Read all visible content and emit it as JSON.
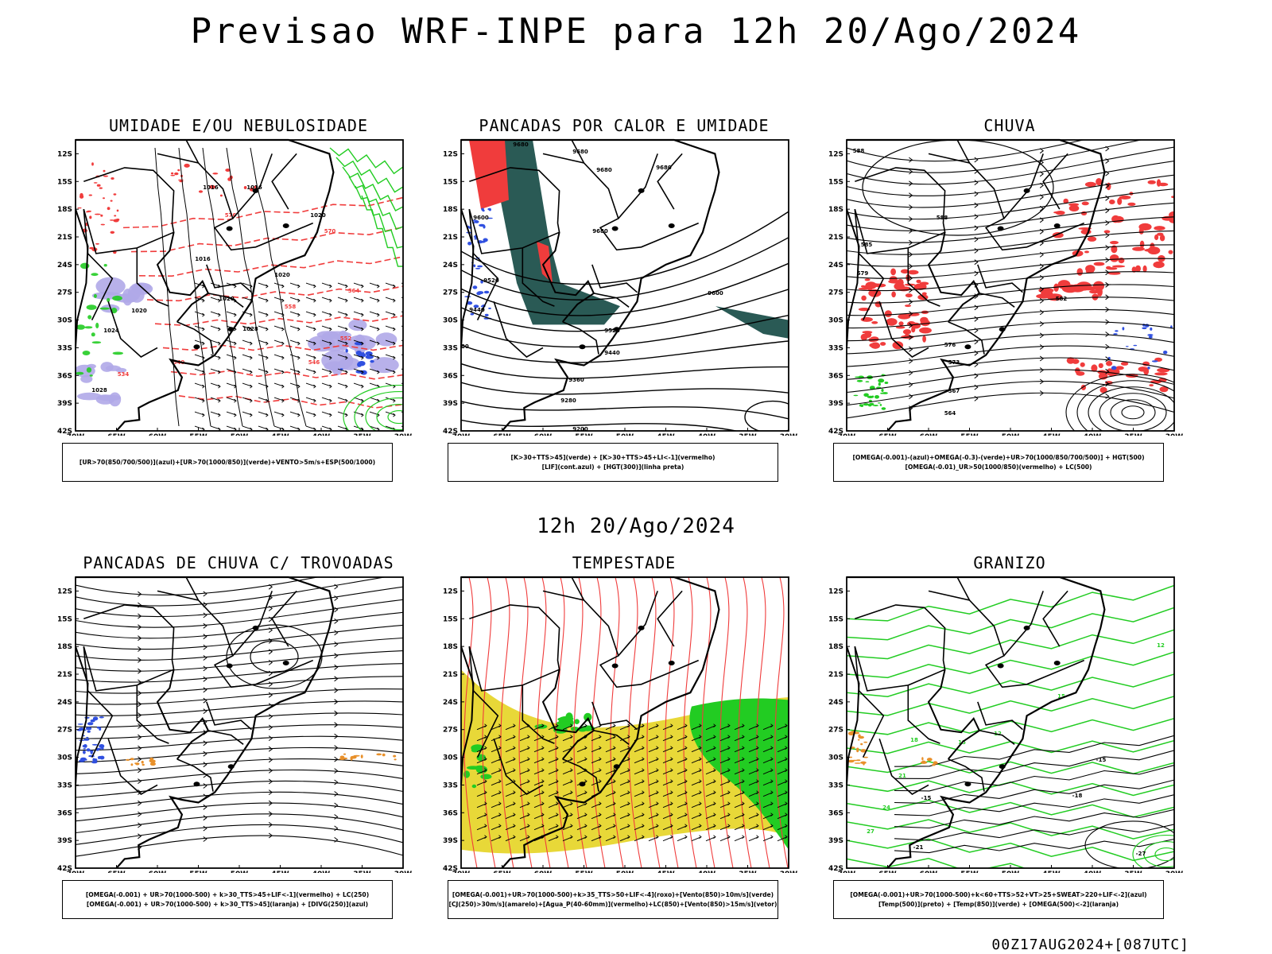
{
  "main_title": "Previsao WRF-INPE  para 12h 20/Ago/2024",
  "mid_title": "12h 20/Ago/2024",
  "footer_stamp": "00Z17AUG2024+[087UTC]",
  "axes": {
    "lat_labels": [
      "12S",
      "15S",
      "18S",
      "21S",
      "24S",
      "27S",
      "30S",
      "33S",
      "36S",
      "39S",
      "42S"
    ],
    "lon_labels": [
      "70W",
      "65W",
      "60W",
      "55W",
      "50W",
      "45W",
      "40W",
      "35W",
      "30W"
    ]
  },
  "colors": {
    "red": "#f03c3c",
    "green": "#22cc22",
    "blue": "#3050e0",
    "lavender": "#b0a8e8",
    "darkteal": "#2a5a55",
    "yellow": "#e8d838",
    "orange": "#e8902a",
    "black": "#000000"
  },
  "panels": [
    {
      "title": "UMIDADE E/OU NEBULOSIDADE",
      "caption_lines": [
        "[UR>70(850/700/500)](azul)+[UR>70(1000/850)](verde)+VENTO>5m/s+ESP(500/1000)"
      ],
      "contour_labels": [
        "1016",
        "1016",
        "1016",
        "1020",
        "1020",
        "1020",
        "1020",
        "1024",
        "1028",
        "1028",
        "576",
        "570",
        "564",
        "558",
        "552",
        "546",
        "540",
        "534"
      ]
    },
    {
      "title": "PANCADAS POR CALOR E UMIDADE",
      "caption_lines": [
        "[K>30+TTS>45](verde) + [K>30+TTS>45+LI<-1](vermelho)",
        "[LIF](cont.azul) + [HGT(300)](linha preta)"
      ],
      "contour_labels": [
        "9680",
        "9680",
        "9680",
        "9680",
        "9680",
        "9600",
        "9600",
        "9520",
        "9520",
        "9440",
        "9440",
        "9360",
        "9280",
        "9200",
        "9200"
      ]
    },
    {
      "title": "CHUVA",
      "caption_lines": [
        "[OMEGA(-0.001)-(azul)+OMEGA(-0.3)-(verde)+UR>70(1000/850/700/500)] + HGT(500)",
        "[OMEGA(-0.01)_UR>50(1000/850)(vermelho) + LC(500)"
      ],
      "contour_labels": [
        "588",
        "585",
        "588",
        "585",
        "582",
        "579",
        "576",
        "573",
        "567",
        "564"
      ]
    },
    {
      "title": "PANCADAS DE CHUVA C/ TROVOADAS",
      "caption_lines": [
        "[OMEGA(-0.001) + UR>70(1000-500) + k>30_TTS>45+LIF<-1](vermelho) + LC(250)",
        "[OMEGA(-0.001) + UR>70(1000-500) + k>30_TTS>45](laranja) + [DIVG(250)](azul)"
      ],
      "contour_labels": []
    },
    {
      "title": "TEMPESTADE",
      "caption_lines": [
        "[OMEGA(-0.001)+UR>70(1000-500)+k>35_TTS>50+LIF<-4](roxo)+[Vento(850)>10m/s](verde)",
        "[CJ(250)>30m/s](amarelo)+[Agua_P(40-60mm)](vermelho)+LC(850)+[Vento(850)>15m/s](vetor)"
      ],
      "contour_labels": []
    },
    {
      "title": "GRANIZO",
      "caption_lines": [
        "[OMEGA(-0.001)+UR>70(1000-500)+k<60+TTS>52+VT>25+SWEAT>220+LIF<-2](azul)",
        "[Temp(500)](preto) + [Temp(850)](verde) + [OMEGA(500)<-2](laranja)"
      ],
      "contour_labels": [
        "12",
        "15",
        "12",
        "15",
        "18",
        "21",
        "24",
        "27",
        "-15",
        "-18",
        "-21",
        "-27",
        "-15"
      ]
    }
  ]
}
